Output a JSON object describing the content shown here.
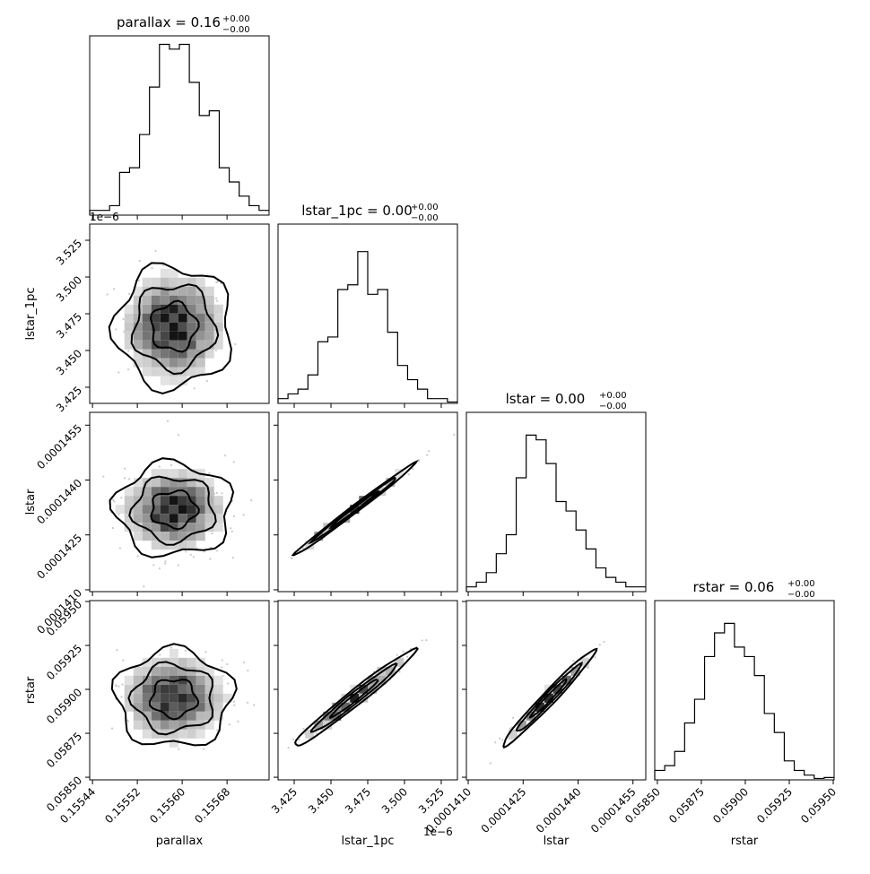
{
  "chart_data": {
    "type": "corner",
    "parameters": [
      "parallax",
      "lstar_1pc",
      "lstar",
      "rstar"
    ],
    "titles": [
      {
        "main": "parallax = 0.16",
        "upper": "+0.00",
        "lower": "−0.00"
      },
      {
        "main": "lstar_1pc = 0.00",
        "upper": "+0.00",
        "lower": "−0.00"
      },
      {
        "main": "lstar = 0.00",
        "upper": "+0.00",
        "lower": "−0.00"
      },
      {
        "main": "rstar = 0.06",
        "upper": "+0.00",
        "lower": "−0.00"
      }
    ],
    "axis_labels": {
      "x": [
        "parallax",
        "lstar_1pc",
        "lstar",
        "rstar"
      ],
      "y": [
        "lstar_1pc",
        "lstar",
        "rstar"
      ]
    },
    "offset_texts": {
      "lstar_1pc_y": "1e−6",
      "lstar_1pc_x": "1e−6"
    },
    "ranges": {
      "parallax": [
        0.155435,
        0.155755
      ],
      "lstar_1pc": [
        3.414,
        3.536
      ],
      "lstar": [
        0.00014095,
        0.00014585
      ],
      "rstar": [
        0.058485,
        0.059505
      ]
    },
    "ticks": {
      "parallax": {
        "values": [
          0.15544,
          0.15552,
          0.1556,
          0.15568
        ],
        "labels": [
          "0.15544",
          "0.15552",
          "0.15560",
          "0.15568"
        ]
      },
      "lstar_1pc": {
        "values": [
          3.425,
          3.45,
          3.475,
          3.5,
          3.525
        ],
        "labels": [
          "3.425",
          "3.450",
          "3.475",
          "3.500",
          "3.525"
        ]
      },
      "lstar": {
        "values": [
          0.000141,
          0.0001425,
          0.000144,
          0.0001455
        ],
        "labels": [
          "0.0001410",
          "0.0001425",
          "0.0001440",
          "0.0001455"
        ]
      },
      "rstar": {
        "values": [
          0.0585,
          0.05875,
          0.059,
          0.05925,
          0.0595
        ],
        "labels": [
          "0.05850",
          "0.05875",
          "0.05900",
          "0.05925",
          "0.05950"
        ]
      }
    },
    "histograms": [
      [
        1,
        1,
        2,
        9,
        10,
        17,
        27,
        36,
        35,
        36,
        28,
        21,
        22,
        10,
        7,
        4,
        2,
        1
      ],
      [
        1,
        2,
        3,
        6,
        13,
        14,
        24,
        25,
        32,
        23,
        24,
        15,
        8,
        5,
        3,
        1,
        1,
        0.3
      ],
      [
        1,
        2,
        4,
        8,
        12,
        24,
        33,
        32,
        27,
        19,
        17,
        13,
        9,
        5,
        3,
        2,
        1,
        1
      ],
      [
        2,
        3,
        6,
        12,
        17,
        26,
        31,
        33,
        28,
        26,
        22,
        14,
        10,
        4,
        2,
        1,
        0.3,
        0.5
      ]
    ],
    "hist_max": 36,
    "correlations": {
      "lstar_1pc|parallax": 0,
      "lstar|parallax": 0,
      "lstar|lstar_1pc": 0.995,
      "rstar|parallax": 0,
      "rstar|lstar_1pc": 0.98,
      "rstar|lstar": 0.98
    },
    "centers": {
      "parallax": 0.155585,
      "lstar_1pc": 3.466,
      "lstar": 0.0001432,
      "rstar": 0.05895
    },
    "sigmas": {
      "parallax": 4.5e-05,
      "lstar_1pc": 0.018,
      "lstar": 5.5e-07,
      "rstar": 0.00012
    }
  }
}
